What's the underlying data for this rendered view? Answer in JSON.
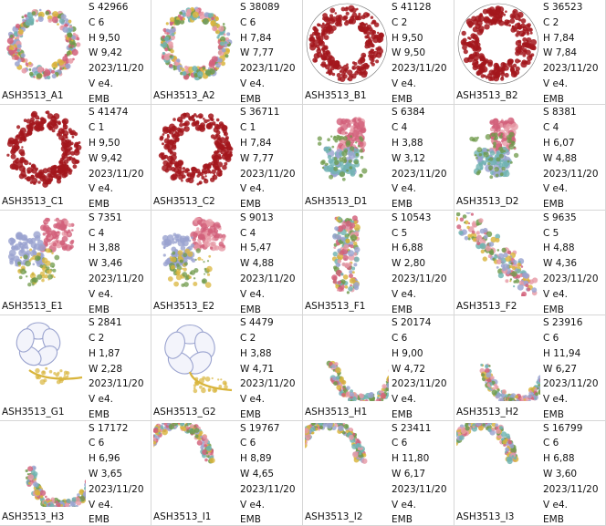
{
  "designs": [
    {
      "name": "ASH3513_A1",
      "stitches": "42966",
      "colors": "6",
      "height": "9,50",
      "width": "9,42",
      "date": "2023/11/20",
      "version": "e4.",
      "format": "EMB",
      "shape": "wreath",
      "palette": "multi"
    },
    {
      "name": "ASH3513_A2",
      "stitches": "38089",
      "colors": "6",
      "height": "7,84",
      "width": "7,77",
      "date": "2023/11/20",
      "version": "e4.",
      "format": "EMB",
      "shape": "wreath",
      "palette": "multi"
    },
    {
      "name": "ASH3513_B1",
      "stitches": "41128",
      "colors": "2",
      "height": "9,50",
      "width": "9,50",
      "date": "2023/11/20",
      "version": "e4.",
      "format": "EMB",
      "shape": "wreath-frame",
      "palette": "red"
    },
    {
      "name": "ASH3513_B2",
      "stitches": "36523",
      "colors": "2",
      "height": "7,84",
      "width": "7,84",
      "date": "2023/11/20",
      "version": "e4.",
      "format": "EMB",
      "shape": "wreath-frame",
      "palette": "red"
    },
    {
      "name": "ASH3513_C1",
      "stitches": "41474",
      "colors": "1",
      "height": "9,50",
      "width": "9,42",
      "date": "2023/11/20",
      "version": "e4.",
      "format": "EMB",
      "shape": "wreath",
      "palette": "red"
    },
    {
      "name": "ASH3513_C2",
      "stitches": "36711",
      "colors": "1",
      "height": "7,84",
      "width": "7,77",
      "date": "2023/11/20",
      "version": "e4.",
      "format": "EMB",
      "shape": "wreath",
      "palette": "red"
    },
    {
      "name": "ASH3513_D1",
      "stitches": "6384",
      "colors": "4",
      "height": "3,88",
      "width": "3,12",
      "date": "2023/11/20",
      "version": "e4.",
      "format": "EMB",
      "shape": "bouquet",
      "palette": "multi"
    },
    {
      "name": "ASH3513_D2",
      "stitches": "8381",
      "colors": "4",
      "height": "6,07",
      "width": "4,88",
      "date": "2023/11/20",
      "version": "e4.",
      "format": "EMB",
      "shape": "bouquet",
      "palette": "multi"
    },
    {
      "name": "ASH3513_E1",
      "stitches": "7351",
      "colors": "4",
      "height": "3,88",
      "width": "3,46",
      "date": "2023/11/20",
      "version": "e4.",
      "format": "EMB",
      "shape": "cluster",
      "palette": "multi"
    },
    {
      "name": "ASH3513_E2",
      "stitches": "9013",
      "colors": "4",
      "height": "5,47",
      "width": "4,88",
      "date": "2023/11/20",
      "version": "e4.",
      "format": "EMB",
      "shape": "cluster",
      "palette": "multi"
    },
    {
      "name": "ASH3513_F1",
      "stitches": "10543",
      "colors": "5",
      "height": "6,88",
      "width": "2,80",
      "date": "2023/11/20",
      "version": "e4.",
      "format": "EMB",
      "shape": "column",
      "palette": "multi"
    },
    {
      "name": "ASH3513_F2",
      "stitches": "9635",
      "colors": "5",
      "height": "4,88",
      "width": "4,36",
      "date": "2023/11/20",
      "version": "e4.",
      "format": "EMB",
      "shape": "diagonal",
      "palette": "multi"
    },
    {
      "name": "ASH3513_G1",
      "stitches": "2841",
      "colors": "2",
      "height": "1,87",
      "width": "2,28",
      "date": "2023/11/20",
      "version": "e4.",
      "format": "EMB",
      "shape": "flower",
      "palette": "outline"
    },
    {
      "name": "ASH3513_G2",
      "stitches": "4479",
      "colors": "2",
      "height": "3,88",
      "width": "4,71",
      "date": "2023/11/20",
      "version": "e4.",
      "format": "EMB",
      "shape": "flower",
      "palette": "outline"
    },
    {
      "name": "ASH3513_H1",
      "stitches": "20174",
      "colors": "6",
      "height": "9,00",
      "width": "4,72",
      "date": "2023/11/20",
      "version": "e4.",
      "format": "EMB",
      "shape": "crescent-left",
      "palette": "multi"
    },
    {
      "name": "ASH3513_H2",
      "stitches": "23916",
      "colors": "6",
      "height": "11,94",
      "width": "6,27",
      "date": "2023/11/20",
      "version": "e4.",
      "format": "EMB",
      "shape": "crescent-left",
      "palette": "multi"
    },
    {
      "name": "ASH3513_H3",
      "stitches": "17172",
      "colors": "6",
      "height": "6,96",
      "width": "3,65",
      "date": "2023/11/20",
      "version": "e4.",
      "format": "EMB",
      "shape": "crescent-left",
      "palette": "multi"
    },
    {
      "name": "ASH3513_I1",
      "stitches": "19767",
      "colors": "6",
      "height": "8,89",
      "width": "4,65",
      "date": "2023/11/20",
      "version": "e4.",
      "format": "EMB",
      "shape": "crescent-right",
      "palette": "multi"
    },
    {
      "name": "ASH3513_I2",
      "stitches": "23411",
      "colors": "6",
      "height": "11,80",
      "width": "6,17",
      "date": "2023/11/20",
      "version": "e4.",
      "format": "EMB",
      "shape": "crescent-right",
      "palette": "multi"
    },
    {
      "name": "ASH3513_I3",
      "stitches": "16799",
      "colors": "6",
      "height": "6,88",
      "width": "3,60",
      "date": "2023/11/20",
      "version": "e4.",
      "format": "EMB",
      "shape": "crescent-right",
      "palette": "multi"
    }
  ],
  "labels": {
    "stitches": "S",
    "colors": "C",
    "height": "H",
    "width": "W",
    "version": "V"
  },
  "colors": {
    "red": "#a3161c",
    "pink": "#d2607a",
    "rose": "#e79aa6",
    "teal": "#6fb3b1",
    "green": "#6f9a4a",
    "lavender": "#9aa3cf",
    "gold": "#d9b53c",
    "border": "#d6d6d6"
  }
}
